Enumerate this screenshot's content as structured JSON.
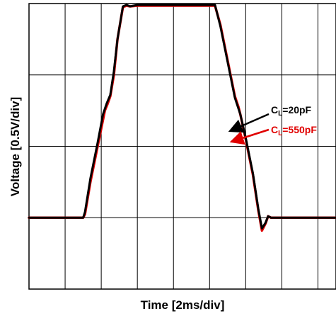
{
  "chart_data": {
    "type": "line",
    "xlabel": "Time [2ms/div]",
    "ylabel": "Voltage [0.5V/div]",
    "x_unit_label": "div",
    "y_unit_label": "div",
    "xlim": [
      0,
      8.5
    ],
    "ylim": [
      0,
      4
    ],
    "x_divisions": 8.5,
    "y_divisions": 4,
    "grid": true,
    "legend": [
      {
        "prefix": "C",
        "subscript": "L",
        "suffix": "=20pF",
        "color": "#000000",
        "series": "CL20"
      },
      {
        "prefix": "C",
        "subscript": "L",
        "suffix": "=550pF",
        "color": "#e00000",
        "series": "CL550"
      }
    ],
    "series": [
      {
        "key": "CL550",
        "color": "#e00000",
        "points": [
          [
            0,
            1.0
          ],
          [
            1.5,
            1.0
          ],
          [
            1.55,
            1.05
          ],
          [
            1.7,
            1.5
          ],
          [
            1.9,
            2.0
          ],
          [
            2.1,
            2.5
          ],
          [
            2.18,
            2.6
          ],
          [
            2.25,
            2.7
          ],
          [
            2.35,
            3.0
          ],
          [
            2.45,
            3.5
          ],
          [
            2.6,
            3.95
          ],
          [
            2.7,
            3.97
          ],
          [
            2.8,
            3.96
          ],
          [
            3.0,
            3.97
          ],
          [
            3.5,
            3.97
          ],
          [
            4.0,
            3.97
          ],
          [
            5.15,
            3.97
          ],
          [
            5.3,
            3.7
          ],
          [
            5.5,
            3.2
          ],
          [
            5.7,
            2.7
          ],
          [
            5.8,
            2.55
          ],
          [
            5.85,
            2.45
          ],
          [
            6.0,
            2.1
          ],
          [
            6.2,
            1.6
          ],
          [
            6.35,
            1.1
          ],
          [
            6.45,
            0.82
          ],
          [
            6.55,
            0.92
          ],
          [
            6.62,
            1.02
          ],
          [
            6.7,
            1.0
          ],
          [
            7.0,
            1.0
          ],
          [
            8.5,
            1.0
          ]
        ]
      },
      {
        "key": "CL20",
        "color": "#000000",
        "points": [
          [
            0,
            1.0
          ],
          [
            1.5,
            1.0
          ],
          [
            1.55,
            1.08
          ],
          [
            1.7,
            1.55
          ],
          [
            1.9,
            2.05
          ],
          [
            2.05,
            2.45
          ],
          [
            2.15,
            2.6
          ],
          [
            2.25,
            2.72
          ],
          [
            2.35,
            3.05
          ],
          [
            2.45,
            3.5
          ],
          [
            2.6,
            3.96
          ],
          [
            2.7,
            3.98
          ],
          [
            2.8,
            3.96
          ],
          [
            3.0,
            3.98
          ],
          [
            3.5,
            3.98
          ],
          [
            4.0,
            3.98
          ],
          [
            5.15,
            3.98
          ],
          [
            5.3,
            3.68
          ],
          [
            5.5,
            3.18
          ],
          [
            5.7,
            2.68
          ],
          [
            5.85,
            2.45
          ],
          [
            6.0,
            2.12
          ],
          [
            6.2,
            1.62
          ],
          [
            6.35,
            1.12
          ],
          [
            6.45,
            0.85
          ],
          [
            6.55,
            0.93
          ],
          [
            6.62,
            1.02
          ],
          [
            6.7,
            1.0
          ],
          [
            7.0,
            1.0
          ],
          [
            8.5,
            1.0
          ]
        ]
      }
    ]
  }
}
